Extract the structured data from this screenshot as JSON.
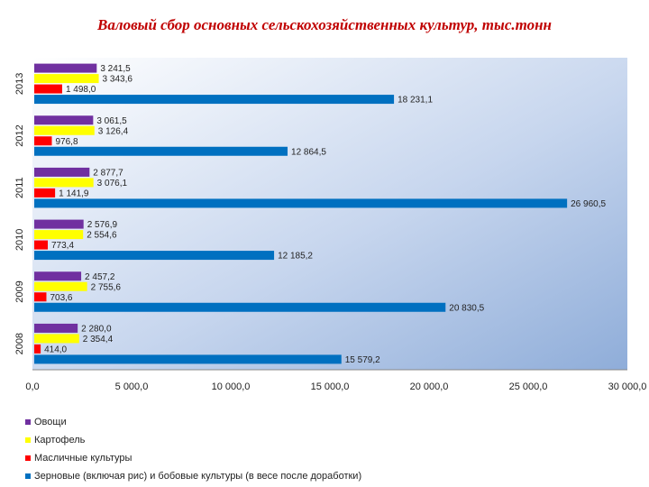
{
  "title": "Валовый сбор основных сельскохозяйственных культур, тыс.тонн",
  "chart_data": {
    "type": "bar",
    "orientation": "horizontal",
    "categories": [
      "2013",
      "2012",
      "2011",
      "2010",
      "2009",
      "2008"
    ],
    "series": [
      {
        "name": "Овощи",
        "color": "#7030a0",
        "values": [
          3241.5,
          3061.5,
          2877.7,
          2576.9,
          2457.2,
          2280.0
        ],
        "labels": [
          "3 241,5",
          "3 061,5",
          "2 877,7",
          "2 576,9",
          "2 457,2",
          "2 280,0"
        ]
      },
      {
        "name": "Картофель",
        "color": "#ffff00",
        "values": [
          3343.6,
          3126.4,
          3076.1,
          2554.6,
          2755.6,
          2354.4
        ],
        "labels": [
          "3 343,6",
          "3 126,4",
          "3 076,1",
          "2 554,6",
          "2 755,6",
          "2 354,4"
        ]
      },
      {
        "name": "Масличные культуры",
        "color": "#ff0000",
        "values": [
          1498.0,
          976.8,
          1141.9,
          773.4,
          703.6,
          414.0
        ],
        "labels": [
          "1 498,0",
          "976,8",
          "1 141,9",
          "773,4",
          "703,6",
          "414,0"
        ]
      },
      {
        "name": "Зерновые (включая рис) и бобовые культуры (в весе после доработки)",
        "color": "#0070c0",
        "values": [
          18231.1,
          12864.5,
          26960.5,
          12185.2,
          20830.5,
          15579.2
        ],
        "labels": [
          "18 231,1",
          "12 864,5",
          "26 960,5",
          "12 185,2",
          "20 830,5",
          "15 579,2"
        ]
      }
    ],
    "xlim": [
      0,
      30000
    ],
    "x_ticks": [
      "0,0",
      "5 000,0",
      "10 000,0",
      "15 000,0",
      "20 000,0",
      "25 000,0",
      "30 000,0"
    ],
    "legend_position": "bottom",
    "grid": false
  }
}
